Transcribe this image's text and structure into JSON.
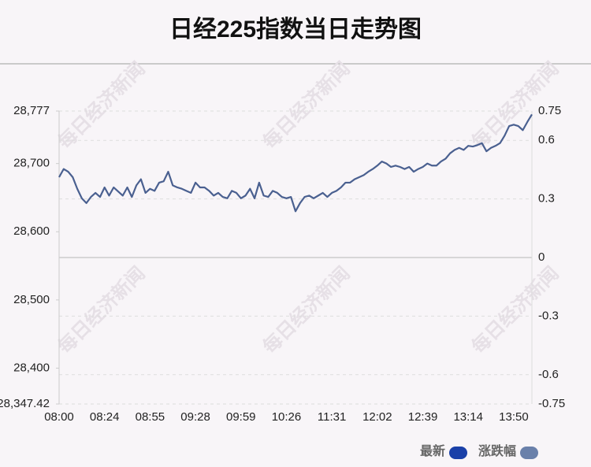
{
  "chart_data": {
    "type": "line",
    "title": "日经225指数当日走势图",
    "watermark": "每日经济新闻",
    "categories": [
      "08:00",
      null,
      null,
      null,
      null,
      null,
      null,
      null,
      null,
      null,
      "08:24",
      null,
      null,
      null,
      null,
      null,
      null,
      null,
      null,
      null,
      "08:55",
      null,
      null,
      null,
      null,
      null,
      null,
      null,
      null,
      null,
      "09:28",
      null,
      null,
      null,
      null,
      null,
      null,
      null,
      null,
      null,
      "09:59",
      null,
      null,
      null,
      null,
      null,
      null,
      null,
      null,
      null,
      "10:26",
      null,
      null,
      null,
      null,
      null,
      null,
      null,
      null,
      null,
      "11:31",
      null,
      null,
      null,
      null,
      null,
      null,
      null,
      null,
      null,
      "12:02",
      null,
      null,
      null,
      null,
      null,
      null,
      null,
      null,
      null,
      "12:39",
      null,
      null,
      null,
      null,
      null,
      null,
      null,
      null,
      null,
      "13:14",
      null,
      null,
      null,
      null,
      null,
      null,
      null,
      null,
      null,
      "13:50",
      null,
      null,
      null,
      null
    ],
    "series": [
      {
        "name": "最新",
        "color": "#4a6090",
        "values": [
          28680,
          28692,
          28688,
          28680,
          28663,
          28649,
          28642,
          28651,
          28657,
          28651,
          28665,
          28653,
          28665,
          28659,
          28653,
          28665,
          28651,
          28668,
          28677,
          28657,
          28663,
          28660,
          28672,
          28674,
          28688,
          28668,
          28665,
          28663,
          28660,
          28657,
          28672,
          28665,
          28665,
          28660,
          28653,
          28657,
          28651,
          28649,
          28660,
          28657,
          28649,
          28653,
          28663,
          28649,
          28672,
          28653,
          28651,
          28660,
          28657,
          28651,
          28649,
          28651,
          28630,
          28642,
          28651,
          28653,
          28649,
          28653,
          28657,
          28651,
          28657,
          28660,
          28665,
          28672,
          28672,
          28677,
          28680,
          28683,
          28688,
          28692,
          28697,
          28703,
          28700,
          28695,
          28697,
          28695,
          28692,
          28695,
          28688,
          28692,
          28695,
          28700,
          28697,
          28697,
          28703,
          28707,
          28715,
          28720,
          28723,
          28720,
          28726,
          28725,
          28727,
          28730,
          28718,
          28723,
          28726,
          28730,
          28741,
          28755,
          28757,
          28755,
          28749,
          28761,
          28772
        ]
      }
    ],
    "legend": [
      {
        "name": "最新",
        "color": "#1a40a8"
      },
      {
        "name": "涨跌幅",
        "color": "#6a80aa"
      }
    ],
    "ylim": [
      28347.42,
      28777
    ],
    "yticks": [
      {
        "value": 28347.42,
        "label": "28,347.42"
      },
      {
        "value": 28400,
        "label": "28,400"
      },
      {
        "value": 28500,
        "label": "28,500"
      },
      {
        "value": 28600,
        "label": "28,600"
      },
      {
        "value": 28700,
        "label": "28,700"
      },
      {
        "value": 28777,
        "label": "28,777"
      }
    ],
    "y2lim": [
      -0.75,
      0.75
    ],
    "y2ticks": [
      0.75,
      0.6,
      0.3,
      0,
      -0.3,
      -0.6,
      -0.75
    ],
    "grid": true
  }
}
